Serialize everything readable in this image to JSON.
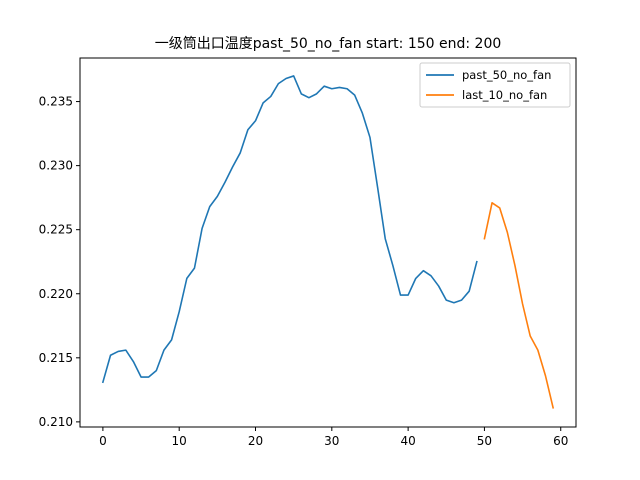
{
  "chart_data": {
    "type": "line",
    "title": "一级筒出口温度past_50_no_fan  start: 150 end: 200",
    "xlabel": "",
    "ylabel": "",
    "xlim": [
      -3,
      62
    ],
    "ylim": [
      0.2096,
      0.2384
    ],
    "x_ticks": [
      0,
      10,
      20,
      30,
      40,
      50,
      60
    ],
    "x_tick_labels": [
      "0",
      "10",
      "20",
      "30",
      "40",
      "50",
      "60"
    ],
    "y_ticks": [
      0.21,
      0.215,
      0.22,
      0.225,
      0.23,
      0.235
    ],
    "y_tick_labels": [
      "0.210",
      "0.215",
      "0.220",
      "0.225",
      "0.230",
      "0.235"
    ],
    "grid": false,
    "legend": "top-right",
    "series": [
      {
        "name": "past_50_no_fan",
        "color": "#1f77b4",
        "x": [
          0,
          1,
          2,
          3,
          4,
          5,
          6,
          7,
          8,
          9,
          10,
          11,
          12,
          13,
          14,
          15,
          16,
          17,
          18,
          19,
          20,
          21,
          22,
          23,
          24,
          25,
          26,
          27,
          28,
          29,
          30,
          31,
          32,
          33,
          34,
          35,
          36,
          37,
          38,
          39,
          40,
          41,
          42,
          43,
          44,
          45,
          46,
          47,
          48,
          49
        ],
        "values": [
          0.2131,
          0.2152,
          0.2155,
          0.2156,
          0.2147,
          0.2135,
          0.2135,
          0.214,
          0.2156,
          0.2164,
          0.2186,
          0.2212,
          0.222,
          0.2251,
          0.2268,
          0.2276,
          0.2287,
          0.2299,
          0.231,
          0.2328,
          0.2335,
          0.2349,
          0.2354,
          0.2364,
          0.2368,
          0.237,
          0.2356,
          0.2353,
          0.2356,
          0.2362,
          0.236,
          0.2361,
          0.236,
          0.2355,
          0.2341,
          0.2322,
          0.2283,
          0.2243,
          0.2222,
          0.2199,
          0.2199,
          0.2212,
          0.2218,
          0.2214,
          0.2206,
          0.2195,
          0.2193,
          0.2195,
          0.2202,
          0.2225
        ]
      },
      {
        "name": "last_10_no_fan",
        "color": "#ff7f0e",
        "x": [
          50,
          51,
          52,
          53,
          54,
          55,
          56,
          57,
          58,
          59
        ],
        "values": [
          0.2243,
          0.2271,
          0.2267,
          0.2248,
          0.2222,
          0.2192,
          0.2167,
          0.2156,
          0.2136,
          0.2111
        ]
      }
    ]
  }
}
